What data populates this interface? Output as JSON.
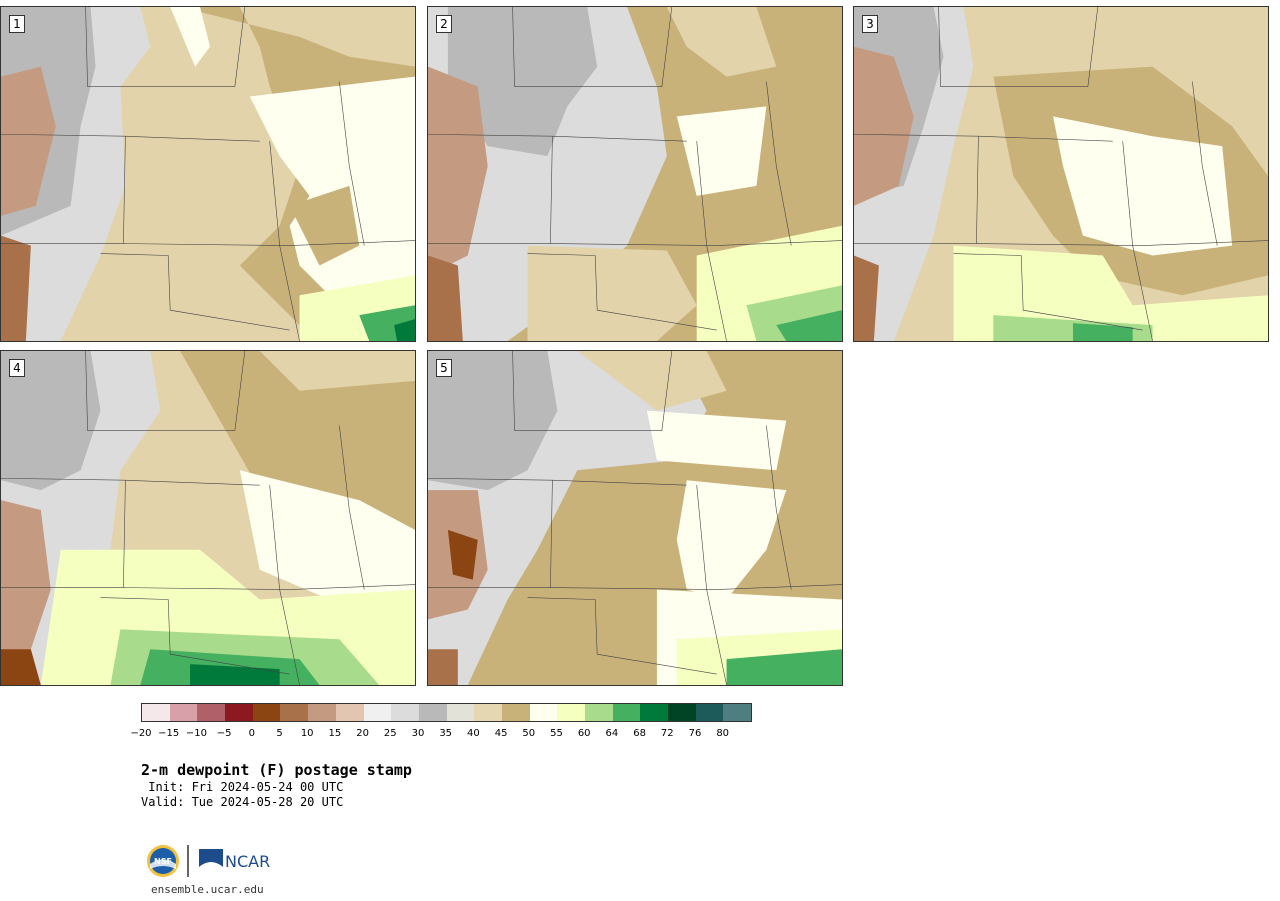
{
  "panels": [
    {
      "label": "1"
    },
    {
      "label": "2"
    },
    {
      "label": "3"
    },
    {
      "label": "4"
    },
    {
      "label": "5"
    }
  ],
  "colorbar": {
    "ticks": [
      "−20",
      "−15",
      "−10",
      "−5",
      "0",
      "5",
      "10",
      "15",
      "20",
      "25",
      "30",
      "35",
      "40",
      "45",
      "50",
      "55",
      "60",
      "64",
      "68",
      "72",
      "76",
      "80"
    ],
    "colors": [
      "#f4e8ea",
      "#d8a0a8",
      "#b06068",
      "#8b1a20",
      "#8b4513",
      "#a8714a",
      "#c49a80",
      "#e2c6b2",
      "#f0f0f0",
      "#dcdcdc",
      "#b9b9b9",
      "#e2e2d8",
      "#e4d7b2",
      "#c9b27a",
      "#fffff0",
      "#f5ffc0",
      "#a8dc8c",
      "#44b060",
      "#007a3a",
      "#004426",
      "#1d5a5a",
      "#4e7e80"
    ]
  },
  "title": "2-m dewpoint (F) postage stamp",
  "init": " Init: Fri 2024-05-24 00 UTC",
  "valid": "Valid: Tue 2024-05-28 20 UTC",
  "site": "ensemble.ucar.edu",
  "logos": {
    "nsf": "NSF",
    "ncar": "NCAR"
  }
}
